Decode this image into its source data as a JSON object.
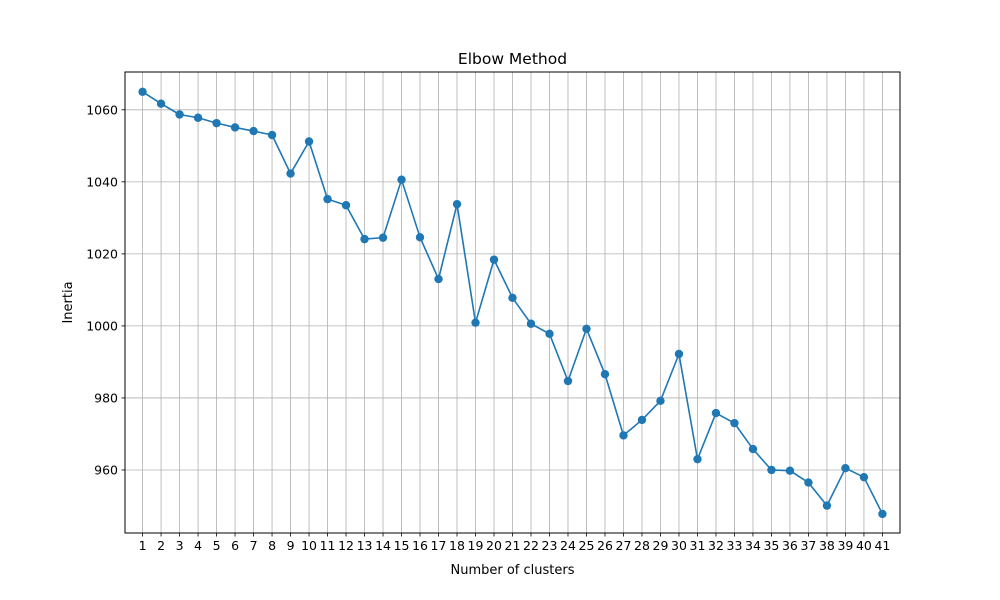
{
  "chart_data": {
    "type": "line",
    "title": "Elbow Method",
    "xlabel": "Number of clusters",
    "ylabel": "Inertia",
    "grid": true,
    "marker": "circle",
    "line_color": "#1f77b4",
    "xlim": [
      0.05,
      41.95
    ],
    "ylim": [
      942.5,
      1070.5
    ],
    "x_ticks": [
      1,
      2,
      3,
      4,
      5,
      6,
      7,
      8,
      9,
      10,
      11,
      12,
      13,
      14,
      15,
      16,
      17,
      18,
      19,
      20,
      21,
      22,
      23,
      24,
      25,
      26,
      27,
      28,
      29,
      30,
      31,
      32,
      33,
      34,
      35,
      36,
      37,
      38,
      39,
      40,
      41
    ],
    "y_ticks": [
      960,
      980,
      1000,
      1020,
      1040,
      1060
    ],
    "series": [
      {
        "x": [
          1,
          2,
          3,
          4,
          5,
          6,
          7,
          8,
          9,
          10,
          11,
          12,
          13,
          14,
          15,
          16,
          17,
          18,
          19,
          20,
          21,
          22,
          23,
          24,
          25,
          26,
          27,
          28,
          29,
          30,
          31,
          32,
          33,
          34,
          35,
          36,
          37,
          38,
          39,
          40,
          41
        ],
        "values": [
          1065,
          1061.7,
          1058.7,
          1057.8,
          1056.3,
          1055.1,
          1054.1,
          1053,
          1042.3,
          1051.2,
          1035.2,
          1033.5,
          1024.1,
          1024.5,
          1040.6,
          1024.6,
          1013,
          1033.8,
          1000.9,
          1018.4,
          1007.8,
          1000.6,
          997.8,
          984.7,
          999.2,
          986.6,
          969.6,
          973.9,
          979.2,
          992.2,
          963,
          975.8,
          973,
          965.8,
          960,
          959.8,
          956.5,
          950.1,
          960.5,
          958,
          947.8
        ]
      }
    ]
  }
}
